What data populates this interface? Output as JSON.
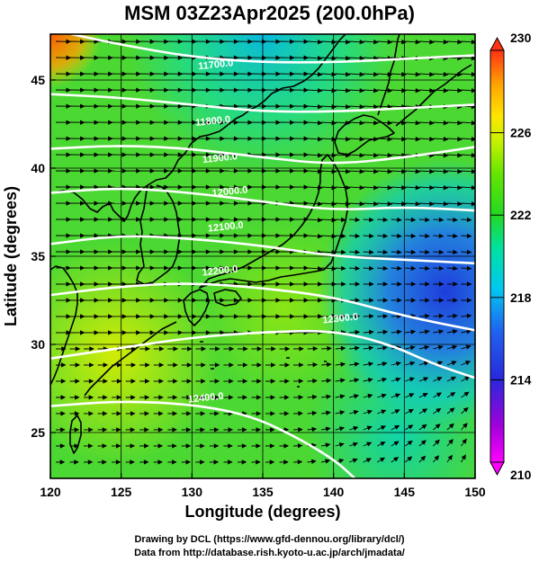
{
  "title": "MSM 03Z23Apr2025 (200.0hPa)",
  "credits": {
    "line1": "Drawing by DCL (https://www.gfd-dennou.org/library/dcl/)",
    "line2": "Data from http://database.rish.kyoto-u.ac.jp/arch/jmadata/"
  },
  "chart_data": {
    "type": "heatmap",
    "title": "MSM 03Z23Apr2025 (200.0hPa)",
    "xlabel": "Longitude (degrees)",
    "ylabel": "Latitude  (degrees)",
    "xlim": [
      120,
      150
    ],
    "ylim": [
      22.4,
      47.6
    ],
    "x_ticks": [
      120,
      125,
      130,
      135,
      140,
      145,
      150
    ],
    "y_ticks": [
      25,
      30,
      35,
      40,
      45
    ],
    "colorbar": {
      "min": 210,
      "max": 230,
      "tick_labels": [
        210,
        214,
        218,
        222,
        226,
        230
      ],
      "colors": [
        "#ff00ff",
        "#7b00cc",
        "#1f1fdc",
        "#1f64f0",
        "#00c8f0",
        "#00e1a0",
        "#22d822",
        "#64e600",
        "#c8f000",
        "#ffe600",
        "#ffa000",
        "#ff3214"
      ]
    },
    "contour_labels": [
      {
        "text": "11700.0",
        "lon": 131.7,
        "lat": 45.7
      },
      {
        "text": "11800.0",
        "lon": 131.5,
        "lat": 42.5
      },
      {
        "text": "11900.0",
        "lon": 132.0,
        "lat": 40.4
      },
      {
        "text": "12000.0",
        "lon": 132.7,
        "lat": 38.5
      },
      {
        "text": "12100.0",
        "lon": 132.4,
        "lat": 36.5
      },
      {
        "text": "12200.0",
        "lon": 132.0,
        "lat": 34.0
      },
      {
        "text": "12300.0",
        "lon": 140.5,
        "lat": 31.3
      },
      {
        "text": "12400.0",
        "lon": 131.0,
        "lat": 26.8
      }
    ],
    "contours": [
      {
        "level": 11700,
        "points": [
          [
            121.5,
            47.6
          ],
          [
            125,
            47.0
          ],
          [
            130,
            46.3
          ],
          [
            135,
            46.0
          ],
          [
            140,
            46.0
          ],
          [
            145,
            46.2
          ],
          [
            150,
            46.4
          ]
        ]
      },
      {
        "level": 11800,
        "points": [
          [
            120,
            44.2
          ],
          [
            125,
            44.0
          ],
          [
            130,
            43.6
          ],
          [
            135,
            43.2
          ],
          [
            140,
            43.2
          ],
          [
            145,
            43.4
          ],
          [
            150,
            43.6
          ]
        ]
      },
      {
        "level": 11900,
        "points": [
          [
            120,
            41.1
          ],
          [
            125,
            41.3
          ],
          [
            130,
            41.1
          ],
          [
            135,
            40.6
          ],
          [
            140,
            40.2
          ],
          [
            145,
            40.6
          ],
          [
            150,
            41.2
          ]
        ]
      },
      {
        "level": 12000,
        "points": [
          [
            120,
            38.6
          ],
          [
            125,
            38.9
          ],
          [
            130,
            38.6
          ],
          [
            135,
            38.1
          ],
          [
            140,
            37.6
          ],
          [
            145,
            37.8
          ],
          [
            150,
            37.6
          ]
        ]
      },
      {
        "level": 12100,
        "points": [
          [
            120,
            35.7
          ],
          [
            125,
            36.2
          ],
          [
            130,
            36.0
          ],
          [
            135,
            35.6
          ],
          [
            140,
            35.0
          ],
          [
            145,
            34.8
          ],
          [
            150,
            34.6
          ]
        ]
      },
      {
        "level": 12200,
        "points": [
          [
            120,
            32.8
          ],
          [
            125,
            33.3
          ],
          [
            130,
            33.5
          ],
          [
            135,
            33.2
          ],
          [
            140,
            32.7
          ],
          [
            145,
            31.6
          ],
          [
            150,
            30.8
          ]
        ]
      },
      {
        "level": 12300,
        "points": [
          [
            120,
            29.2
          ],
          [
            125,
            29.8
          ],
          [
            130,
            30.4
          ],
          [
            135,
            30.7
          ],
          [
            140,
            30.8
          ],
          [
            144,
            30.0
          ],
          [
            147,
            28.9
          ],
          [
            150,
            28.1
          ]
        ]
      },
      {
        "level": 12400,
        "points": [
          [
            120,
            26.5
          ],
          [
            125,
            26.8
          ],
          [
            130,
            26.6
          ],
          [
            134,
            26.0
          ],
          [
            137,
            24.9
          ],
          [
            140,
            23.5
          ],
          [
            141.5,
            22.4
          ]
        ]
      }
    ]
  }
}
